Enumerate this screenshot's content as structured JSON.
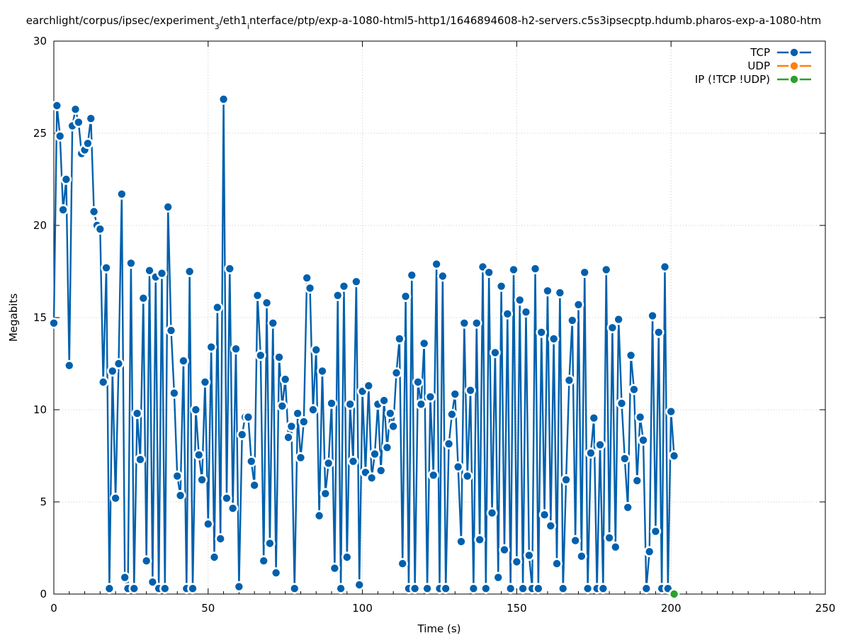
{
  "chart_data": {
    "type": "line",
    "title": "earchlight/corpus/ipsec/experiment",
    "title_parts": {
      "part1": "earchlight/corpus/ipsec/experiment",
      "sub1": "3",
      "part2": "/eth1",
      "sub2": "i",
      "part3": "nterface/ptp/exp-a-1080-html5-http1/1646894608-h2-servers.c5s3ipsecptp.hdumb.pharos-exp-a-1080-htm"
    },
    "xlabel": "Time (s)",
    "ylabel": "Megabits",
    "xlim": [
      0,
      250
    ],
    "ylim": [
      0,
      30
    ],
    "xticks": [
      "0",
      "50",
      "100",
      "150",
      "200",
      "250"
    ],
    "yticks": [
      "0",
      "5",
      "10",
      "15",
      "20",
      "25",
      "30"
    ],
    "grid": true,
    "legend_position": "top-right",
    "series": [
      {
        "name": "TCP",
        "color": "#0060ad",
        "x": [
          0,
          1,
          2,
          3,
          4,
          5,
          6,
          7,
          8,
          9,
          10,
          11,
          12,
          13,
          14,
          15,
          16,
          17,
          18,
          19,
          20,
          21,
          22,
          23,
          24,
          25,
          26,
          27,
          28,
          29,
          30,
          31,
          32,
          33,
          34,
          35,
          36,
          37,
          38,
          39,
          40,
          41,
          42,
          43,
          44,
          45,
          46,
          47,
          48,
          49,
          50,
          51,
          52,
          53,
          54,
          55,
          56,
          57,
          58,
          59,
          60,
          61,
          62,
          63,
          64,
          65,
          66,
          67,
          68,
          69,
          70,
          71,
          72,
          73,
          74,
          75,
          76,
          77,
          78,
          79,
          80,
          81,
          82,
          83,
          84,
          85,
          86,
          87,
          88,
          89,
          90,
          91,
          92,
          93,
          94,
          95,
          96,
          97,
          98,
          99,
          100,
          101,
          102,
          103,
          104,
          105,
          106,
          107,
          108,
          109,
          110,
          111,
          112,
          113,
          114,
          115,
          116,
          117,
          118,
          119,
          120,
          121,
          122,
          123,
          124,
          125,
          126,
          127,
          128,
          129,
          130,
          131,
          132,
          133,
          134,
          135,
          136,
          137,
          138,
          139,
          140,
          141,
          142,
          143,
          144,
          145,
          146,
          147,
          148,
          149,
          150,
          151,
          152,
          153,
          154,
          155,
          156,
          157,
          158,
          159,
          160,
          161,
          162,
          163,
          164,
          165,
          166,
          167,
          168,
          169,
          170,
          171,
          172,
          173,
          174,
          175,
          176,
          177,
          178,
          179,
          180,
          181,
          182,
          183,
          184,
          185,
          186,
          187,
          188,
          189,
          190,
          191,
          192,
          193,
          194,
          195,
          196,
          197,
          198,
          199,
          200,
          201
        ],
        "values": [
          14.7,
          26.5,
          24.85,
          20.85,
          22.5,
          12.4,
          25.4,
          26.3,
          25.6,
          23.9,
          24.1,
          24.45,
          25.8,
          20.75,
          20.0,
          19.8,
          11.5,
          17.7,
          0.3,
          12.1,
          5.2,
          12.5,
          21.7,
          0.9,
          0.3,
          17.95,
          0.3,
          9.8,
          7.3,
          16.05,
          1.8,
          17.55,
          0.65,
          17.2,
          0.3,
          17.4,
          0.3,
          21.0,
          14.3,
          10.9,
          6.4,
          5.35,
          12.65,
          0.3,
          17.5,
          0.3,
          10.0,
          7.55,
          6.2,
          11.5,
          3.8,
          13.4,
          2.0,
          15.55,
          3.0,
          26.85,
          5.2,
          17.65,
          4.65,
          13.3,
          0.4,
          8.65,
          9.6,
          9.6,
          7.2,
          5.9,
          16.2,
          12.95,
          1.8,
          15.8,
          2.75,
          14.7,
          1.15,
          12.85,
          10.2,
          11.65,
          8.5,
          9.1,
          0.3,
          9.8,
          7.4,
          9.35,
          17.15,
          16.6,
          10.0,
          13.25,
          4.25,
          12.1,
          5.45,
          7.1,
          10.35,
          1.4,
          16.2,
          0.3,
          16.7,
          2.0,
          10.3,
          7.2,
          16.95,
          0.5,
          11.0,
          6.6,
          11.3,
          6.3,
          7.6,
          10.3,
          6.7,
          10.5,
          7.95,
          9.8,
          9.1,
          12.0,
          13.85,
          1.65,
          16.15,
          0.3,
          17.3,
          0.3,
          11.5,
          10.3,
          13.6,
          0.3,
          10.7,
          6.45,
          17.9,
          0.3,
          17.25,
          0.3,
          8.15,
          9.75,
          10.85,
          6.9,
          2.85,
          14.7,
          6.4,
          11.05,
          0.3,
          14.7,
          2.95,
          17.75,
          0.3,
          17.45,
          4.4,
          13.1,
          0.9,
          16.7,
          2.4,
          15.2,
          0.3,
          17.6,
          1.75,
          15.95,
          0.3,
          15.3,
          2.1,
          0.3,
          17.65,
          0.3,
          14.2,
          4.3,
          16.45,
          3.7,
          13.85,
          1.65,
          16.35,
          0.3,
          6.2,
          11.6,
          14.85,
          2.9,
          15.7,
          2.05,
          17.45,
          0.3,
          7.65,
          9.55,
          0.3,
          8.1,
          0.3,
          17.6,
          3.05,
          14.45,
          2.55,
          14.9,
          10.35,
          7.35,
          4.7,
          12.95,
          11.1,
          6.15,
          9.6,
          8.35,
          0.3,
          2.3,
          15.1,
          3.4,
          14.2,
          0.3,
          17.75,
          0.3,
          9.9,
          7.5
        ]
      },
      {
        "name": "UDP",
        "color": "#ff7f0e",
        "x": [],
        "values": []
      },
      {
        "name": "IP (!TCP  !UDP)",
        "color": "#2ca02c",
        "x": [
          201
        ],
        "values": [
          0
        ]
      }
    ]
  }
}
